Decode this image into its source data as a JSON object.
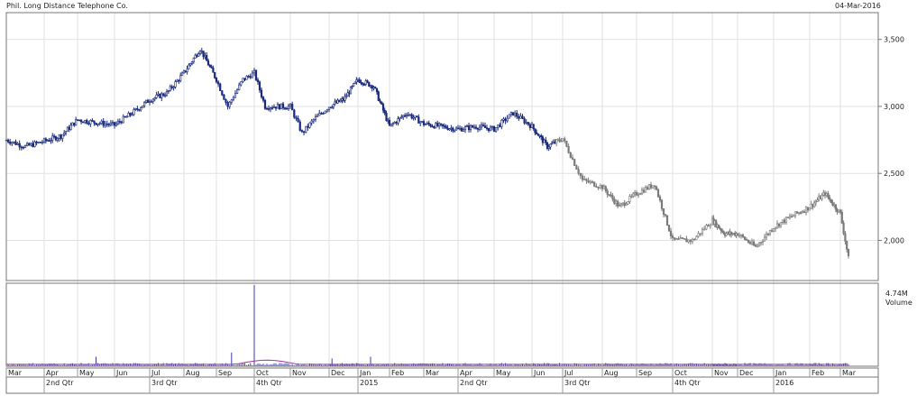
{
  "chart_data": {
    "type": "candlestick",
    "title": "Phil. Long Distance Telephone Co.",
    "date": "04-Mar-2016",
    "price_axis": {
      "ylim": [
        1700,
        3700
      ],
      "ticks": [
        "3,500",
        "3,000",
        "2,500",
        "2,000"
      ],
      "tick_values": [
        3500,
        3000,
        2500,
        2000
      ]
    },
    "volume_label": [
      "4.74M",
      "Volume"
    ],
    "month_labels": [
      "Mar",
      "Apr",
      "May",
      "Jun",
      "Jul",
      "Aug",
      "Sep",
      "Oct",
      "Nov",
      "Dec",
      "Jan",
      "Feb",
      "Mar",
      "Apr",
      "May",
      "Jun",
      "Jul",
      "Aug",
      "Sep",
      "Oct",
      "Nov",
      "Dec",
      "Jan",
      "Feb",
      "Mar"
    ],
    "period_labels": [
      "2nd Qtr",
      "3rd Qtr",
      "4th Qtr",
      "2015",
      "2nd Qtr",
      "3rd Qtr",
      "4th Qtr",
      "2016"
    ],
    "grid": true,
    "price_series": {
      "x_months": [
        0,
        0.5,
        1,
        1.5,
        2,
        2.5,
        3,
        3.5,
        4,
        4.5,
        5,
        5.5,
        6,
        6.3,
        6.7,
        7,
        7.3,
        7.6,
        8,
        8.3,
        8.6,
        9,
        9.5,
        10,
        10.5,
        11,
        11.5,
        12,
        12.5,
        13,
        13.5,
        14,
        14.5,
        15,
        15.5,
        16,
        16.5,
        17,
        17.5,
        18,
        18.5,
        19,
        19.5,
        20,
        20.5,
        21,
        21.5,
        22,
        22.5,
        23,
        23.5,
        24,
        24.3
      ],
      "close": [
        2750,
        2700,
        2740,
        2780,
        2900,
        2880,
        2860,
        2950,
        3050,
        3100,
        3250,
        3430,
        3200,
        3000,
        3200,
        3250,
        3000,
        3000,
        3000,
        2800,
        2900,
        3000,
        3050,
        3200,
        3150,
        2850,
        2950,
        2870,
        2850,
        2830,
        2850,
        2830,
        2950,
        2850,
        2700,
        2760,
        2450,
        2400,
        2250,
        2350,
        2420,
        2000,
        2000,
        2150,
        2050,
        2050,
        1950,
        2100,
        2180,
        2250,
        2350,
        2200,
        1800
      ],
      "gray_from_month": 15.8
    },
    "volume_series": {
      "note": "volume bars relative to 4.74M max",
      "spikes_month": [
        7.0,
        6.4,
        2.5,
        10.4,
        9.1
      ],
      "spikes_value_m": [
        4.74,
        0.8,
        0.55,
        0.55,
        0.45
      ],
      "base_value_m": 0.12
    }
  }
}
